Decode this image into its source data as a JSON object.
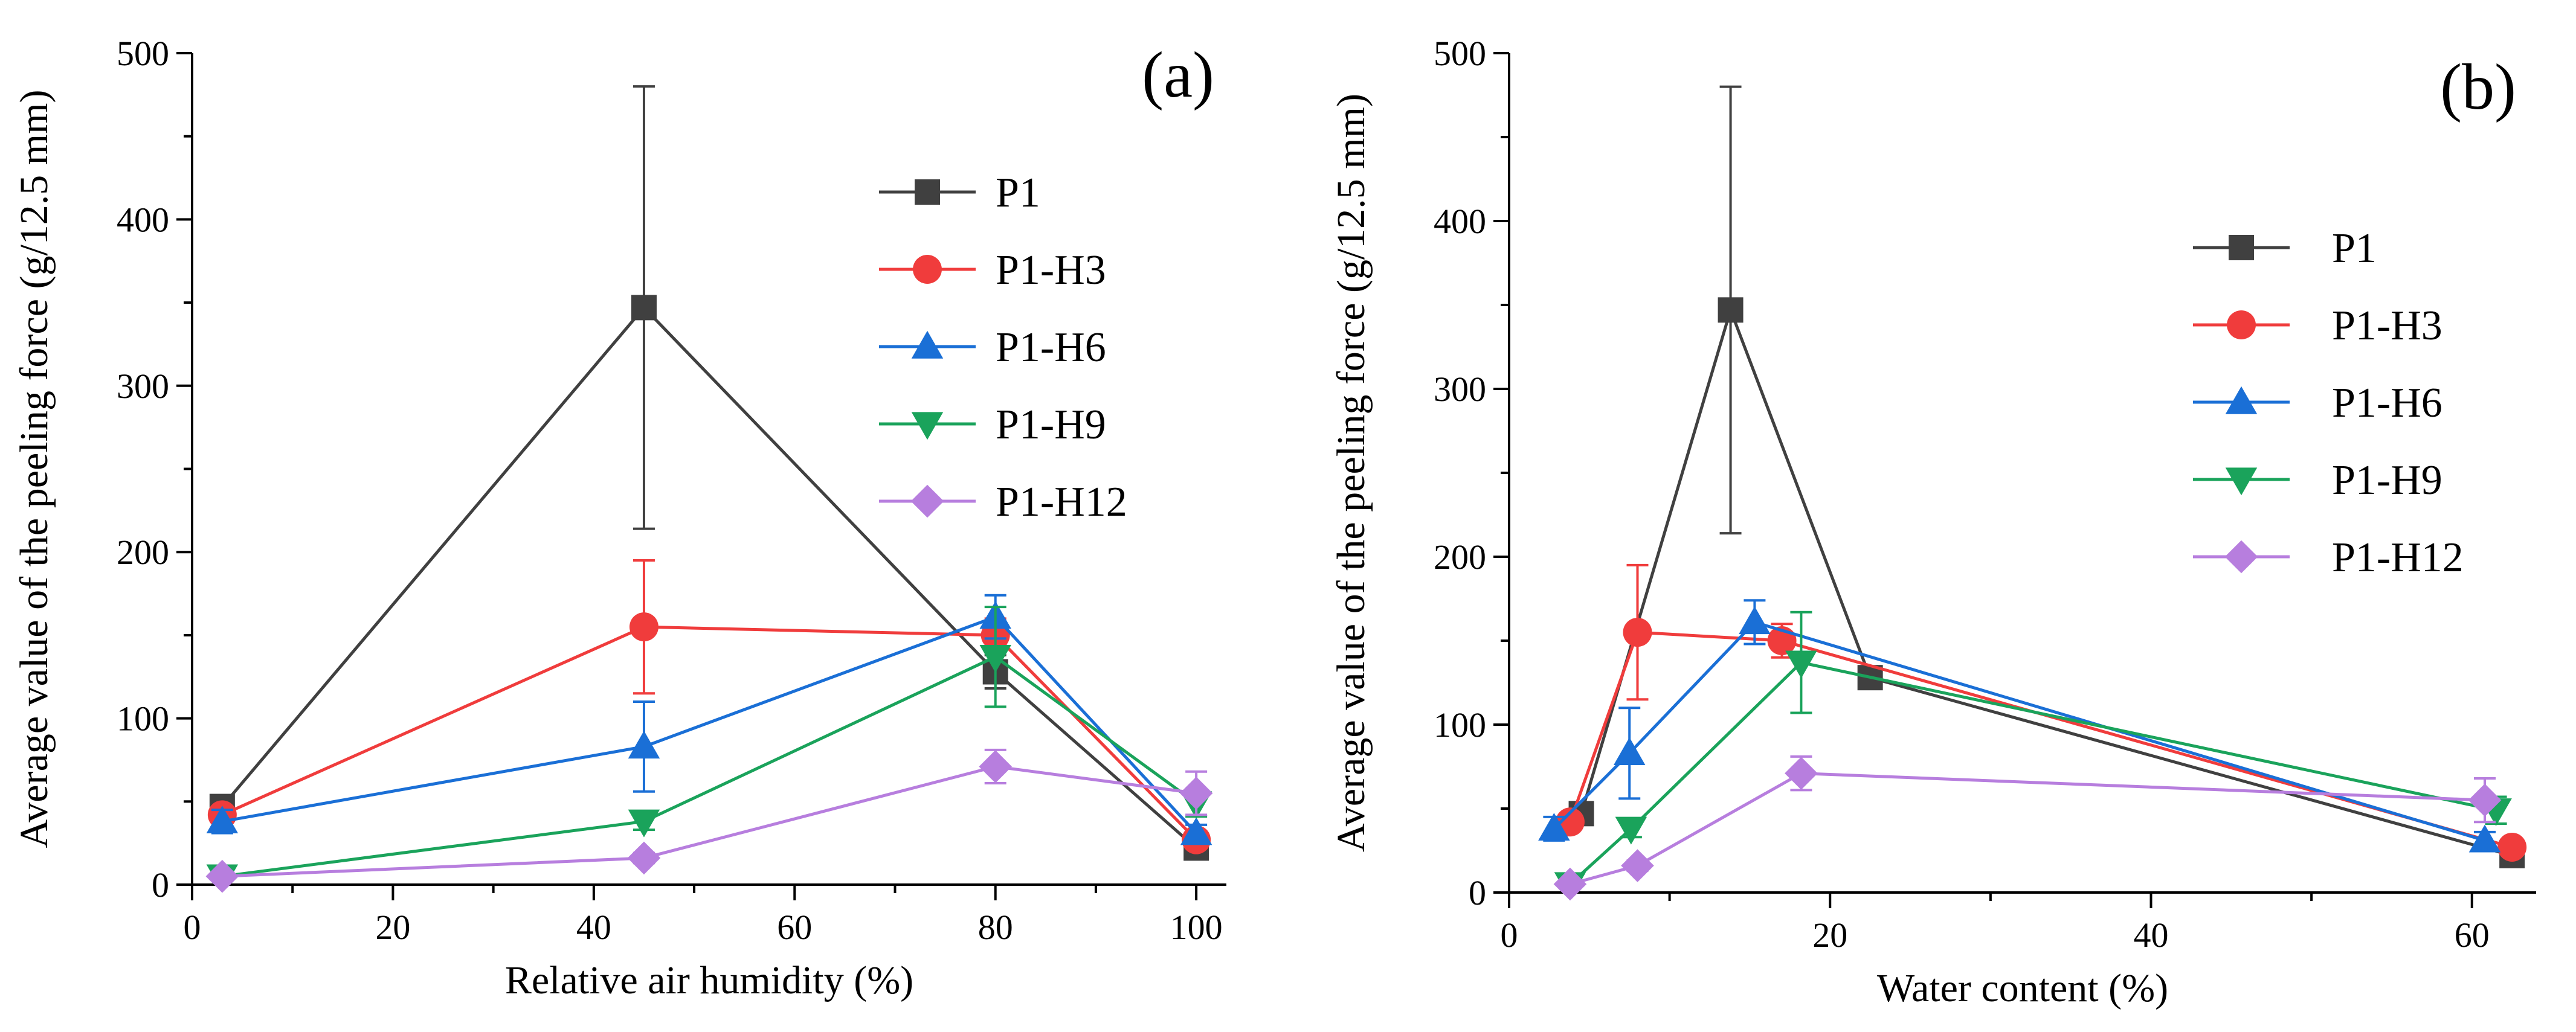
{
  "chart_data": [
    {
      "type": "line",
      "panel_label": "(a)",
      "xlabel": "Relative air humidity (%)",
      "ylabel": "Average value of the peeling force (g/12.5 mm)",
      "xlim": [
        0,
        103
      ],
      "ylim": [
        0,
        500
      ],
      "xticks": [
        0,
        20,
        40,
        60,
        80,
        100
      ],
      "yticks": [
        0,
        100,
        200,
        300,
        400,
        500
      ],
      "xtick_labels": [
        "0",
        "20",
        "40",
        "60",
        "80",
        "100"
      ],
      "ytick_labels": [
        "0",
        "100",
        "200",
        "300",
        "400",
        "500"
      ],
      "legend_position": "top-right",
      "series": [
        {
          "name": "P1",
          "color": "#404040",
          "marker": "square",
          "x": [
            3,
            45,
            80,
            100
          ],
          "y": [
            47,
            347,
            128,
            22
          ],
          "err": [
            5,
            133,
            10,
            3
          ]
        },
        {
          "name": "P1-H3",
          "color": "#f03c3c",
          "marker": "circle",
          "x": [
            3,
            45,
            80,
            100
          ],
          "y": [
            42,
            155,
            150,
            27
          ],
          "err": [
            4,
            40,
            10,
            3
          ]
        },
        {
          "name": "P1-H6",
          "color": "#1a6fd6",
          "marker": "triangle-up",
          "x": [
            3,
            45,
            80,
            100
          ],
          "y": [
            38,
            83,
            161,
            31
          ],
          "err": [
            7,
            27,
            13,
            5
          ]
        },
        {
          "name": "P1-H9",
          "color": "#1aa35b",
          "marker": "triangle-down",
          "x": [
            3,
            45,
            80,
            100
          ],
          "y": [
            5,
            38,
            137,
            49
          ],
          "err": [
            2,
            5,
            30,
            8
          ]
        },
        {
          "name": "P1-H12",
          "color": "#b77ede",
          "marker": "diamond",
          "x": [
            3,
            45,
            80,
            100
          ],
          "y": [
            5,
            16,
            71,
            55
          ],
          "err": [
            2,
            3,
            10,
            13
          ]
        }
      ]
    },
    {
      "type": "line",
      "panel_label": "(b)",
      "xlabel": "Water content (%)",
      "ylabel": "Average value of the peeling force (g/12.5 mm)",
      "xlim": [
        0,
        64
      ],
      "ylim": [
        0,
        500
      ],
      "xticks": [
        0,
        20,
        40,
        60
      ],
      "yticks": [
        0,
        100,
        200,
        300,
        400,
        500
      ],
      "xtick_labels": [
        "0",
        "20",
        "40",
        "60"
      ],
      "ytick_labels": [
        "0",
        "100",
        "200",
        "300",
        "400",
        "500"
      ],
      "legend_position": "top-right",
      "series": [
        {
          "name": "P1",
          "color": "#404040",
          "marker": "square",
          "x": [
            4.5,
            13.8,
            22.5,
            62.5
          ],
          "y": [
            47,
            347,
            128,
            22
          ],
          "err": [
            5,
            133,
            5,
            3
          ]
        },
        {
          "name": "P1-H3",
          "color": "#f03c3c",
          "marker": "circle",
          "x": [
            3.8,
            8.0,
            17.0,
            62.5
          ],
          "y": [
            42,
            155,
            150,
            27
          ],
          "err": [
            4,
            40,
            10,
            3
          ]
        },
        {
          "name": "P1-H6",
          "color": "#1a6fd6",
          "marker": "triangle-up",
          "x": [
            2.8,
            7.5,
            15.3,
            60.8
          ],
          "y": [
            38,
            83,
            161,
            31
          ],
          "err": [
            7,
            27,
            13,
            5
          ]
        },
        {
          "name": "P1-H9",
          "color": "#1aa35b",
          "marker": "triangle-down",
          "x": [
            3.8,
            7.6,
            18.2,
            61.5
          ],
          "y": [
            5,
            38,
            137,
            49
          ],
          "err": [
            2,
            5,
            30,
            8
          ]
        },
        {
          "name": "P1-H12",
          "color": "#b77ede",
          "marker": "diamond",
          "x": [
            3.8,
            8.0,
            18.2,
            60.8
          ],
          "y": [
            5,
            16,
            71,
            55
          ],
          "err": [
            2,
            3,
            10,
            13
          ]
        }
      ]
    }
  ]
}
